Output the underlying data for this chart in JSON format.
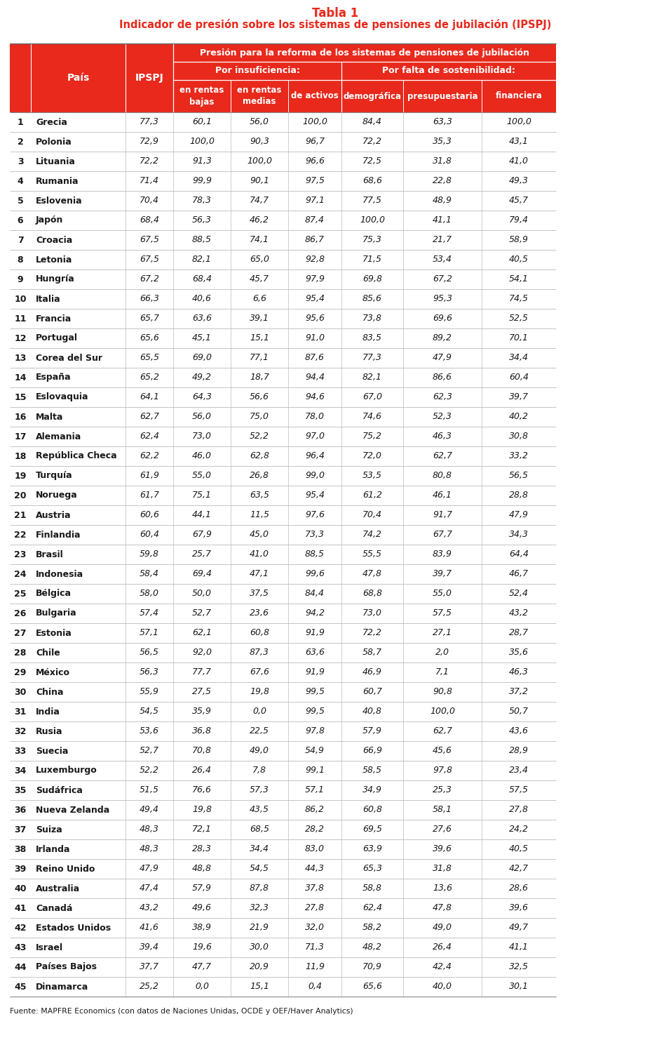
{
  "title_line1": "Tabla 1",
  "title_line2": "Indicador de presión sobre los sistemas de pensiones de jubilación (IPSPJ)",
  "header_main": "Presión para la reforma de los sistemas de pensiones de jubilación",
  "header_sub1": "Por insuficiencia:",
  "header_sub2": "Por falta de sostenibilidad:",
  "col_h_pais": "País",
  "col_h_ipspj": "IPSPJ",
  "col_h_rentas_bajas": "en rentas\nbajas",
  "col_h_rentas_medias": "en rentas\nmedias",
  "col_h_activos": "de activos",
  "col_h_demografica": "demográfica",
  "col_h_presupuestaria": "presupuestaria",
  "col_h_financiera": "financiera",
  "footer": "Fuente: MAPFRE Economics (con datos de Naciones Unidas, OCDE y OEF/Haver Analytics)",
  "red_color": "#E8291C",
  "white_color": "#FFFFFF",
  "black_color": "#1a1a1a",
  "gray_line": "#bbbbbb",
  "row_data": [
    [
      1,
      "Grecia",
      "77,3",
      "60,1",
      "56,0",
      "100,0",
      "84,4",
      "63,3",
      "100,0"
    ],
    [
      2,
      "Polonia",
      "72,9",
      "100,0",
      "90,3",
      "96,7",
      "72,2",
      "35,3",
      "43,1"
    ],
    [
      3,
      "Lituania",
      "72,2",
      "91,3",
      "100,0",
      "96,6",
      "72,5",
      "31,8",
      "41,0"
    ],
    [
      4,
      "Rumania",
      "71,4",
      "99,9",
      "90,1",
      "97,5",
      "68,6",
      "22,8",
      "49,3"
    ],
    [
      5,
      "Eslovenia",
      "70,4",
      "78,3",
      "74,7",
      "97,1",
      "77,5",
      "48,9",
      "45,7"
    ],
    [
      6,
      "Japón",
      "68,4",
      "56,3",
      "46,2",
      "87,4",
      "100,0",
      "41,1",
      "79,4"
    ],
    [
      7,
      "Croacia",
      "67,5",
      "88,5",
      "74,1",
      "86,7",
      "75,3",
      "21,7",
      "58,9"
    ],
    [
      8,
      "Letonia",
      "67,5",
      "82,1",
      "65,0",
      "92,8",
      "71,5",
      "53,4",
      "40,5"
    ],
    [
      9,
      "Hungría",
      "67,2",
      "68,4",
      "45,7",
      "97,9",
      "69,8",
      "67,2",
      "54,1"
    ],
    [
      10,
      "Italia",
      "66,3",
      "40,6",
      "6,6",
      "95,4",
      "85,6",
      "95,3",
      "74,5"
    ],
    [
      11,
      "Francia",
      "65,7",
      "63,6",
      "39,1",
      "95,6",
      "73,8",
      "69,6",
      "52,5"
    ],
    [
      12,
      "Portugal",
      "65,6",
      "45,1",
      "15,1",
      "91,0",
      "83,5",
      "89,2",
      "70,1"
    ],
    [
      13,
      "Corea del Sur",
      "65,5",
      "69,0",
      "77,1",
      "87,6",
      "77,3",
      "47,9",
      "34,4"
    ],
    [
      14,
      "España",
      "65,2",
      "49,2",
      "18,7",
      "94,4",
      "82,1",
      "86,6",
      "60,4"
    ],
    [
      15,
      "Eslovaquia",
      "64,1",
      "64,3",
      "56,6",
      "94,6",
      "67,0",
      "62,3",
      "39,7"
    ],
    [
      16,
      "Malta",
      "62,7",
      "56,0",
      "75,0",
      "78,0",
      "74,6",
      "52,3",
      "40,2"
    ],
    [
      17,
      "Alemania",
      "62,4",
      "73,0",
      "52,2",
      "97,0",
      "75,2",
      "46,3",
      "30,8"
    ],
    [
      18,
      "República Checa",
      "62,2",
      "46,0",
      "62,8",
      "96,4",
      "72,0",
      "62,7",
      "33,2"
    ],
    [
      19,
      "Turquía",
      "61,9",
      "55,0",
      "26,8",
      "99,0",
      "53,5",
      "80,8",
      "56,5"
    ],
    [
      20,
      "Noruega",
      "61,7",
      "75,1",
      "63,5",
      "95,4",
      "61,2",
      "46,1",
      "28,8"
    ],
    [
      21,
      "Austria",
      "60,6",
      "44,1",
      "11,5",
      "97,6",
      "70,4",
      "91,7",
      "47,9"
    ],
    [
      22,
      "Finlandia",
      "60,4",
      "67,9",
      "45,0",
      "73,3",
      "74,2",
      "67,7",
      "34,3"
    ],
    [
      23,
      "Brasil",
      "59,8",
      "25,7",
      "41,0",
      "88,5",
      "55,5",
      "83,9",
      "64,4"
    ],
    [
      24,
      "Indonesia",
      "58,4",
      "69,4",
      "47,1",
      "99,6",
      "47,8",
      "39,7",
      "46,7"
    ],
    [
      25,
      "Bélgica",
      "58,0",
      "50,0",
      "37,5",
      "84,4",
      "68,8",
      "55,0",
      "52,4"
    ],
    [
      26,
      "Bulgaria",
      "57,4",
      "52,7",
      "23,6",
      "94,2",
      "73,0",
      "57,5",
      "43,2"
    ],
    [
      27,
      "Estonia",
      "57,1",
      "62,1",
      "60,8",
      "91,9",
      "72,2",
      "27,1",
      "28,7"
    ],
    [
      28,
      "Chile",
      "56,5",
      "92,0",
      "87,3",
      "63,6",
      "58,7",
      "2,0",
      "35,6"
    ],
    [
      29,
      "México",
      "56,3",
      "77,7",
      "67,6",
      "91,9",
      "46,9",
      "7,1",
      "46,3"
    ],
    [
      30,
      "China",
      "55,9",
      "27,5",
      "19,8",
      "99,5",
      "60,7",
      "90,8",
      "37,2"
    ],
    [
      31,
      "India",
      "54,5",
      "35,9",
      "0,0",
      "99,5",
      "40,8",
      "100,0",
      "50,7"
    ],
    [
      32,
      "Rusia",
      "53,6",
      "36,8",
      "22,5",
      "97,8",
      "57,9",
      "62,7",
      "43,6"
    ],
    [
      33,
      "Suecia",
      "52,7",
      "70,8",
      "49,0",
      "54,9",
      "66,9",
      "45,6",
      "28,9"
    ],
    [
      34,
      "Luxemburgo",
      "52,2",
      "26,4",
      "7,8",
      "99,1",
      "58,5",
      "97,8",
      "23,4"
    ],
    [
      35,
      "Sudáfrica",
      "51,5",
      "76,6",
      "57,3",
      "57,1",
      "34,9",
      "25,3",
      "57,5"
    ],
    [
      36,
      "Nueva Zelanda",
      "49,4",
      "19,8",
      "43,5",
      "86,2",
      "60,8",
      "58,1",
      "27,8"
    ],
    [
      37,
      "Suiza",
      "48,3",
      "72,1",
      "68,5",
      "28,2",
      "69,5",
      "27,6",
      "24,2"
    ],
    [
      38,
      "Irlanda",
      "48,3",
      "28,3",
      "34,4",
      "83,0",
      "63,9",
      "39,6",
      "40,5"
    ],
    [
      39,
      "Reino Unido",
      "47,9",
      "48,8",
      "54,5",
      "44,3",
      "65,3",
      "31,8",
      "42,7"
    ],
    [
      40,
      "Australia",
      "47,4",
      "57,9",
      "87,8",
      "37,8",
      "58,8",
      "13,6",
      "28,6"
    ],
    [
      41,
      "Canadá",
      "43,2",
      "49,6",
      "32,3",
      "27,8",
      "62,4",
      "47,8",
      "39,6"
    ],
    [
      42,
      "Estados Unidos",
      "41,6",
      "38,9",
      "21,9",
      "32,0",
      "58,2",
      "49,0",
      "49,7"
    ],
    [
      43,
      "Israel",
      "39,4",
      "19,6",
      "30,0",
      "71,3",
      "48,2",
      "26,4",
      "41,1"
    ],
    [
      44,
      "Países Bajos",
      "37,7",
      "47,7",
      "20,9",
      "11,9",
      "70,9",
      "42,4",
      "32,5"
    ],
    [
      45,
      "Dinamarca",
      "25,2",
      "0,0",
      "15,1",
      "0,4",
      "65,6",
      "40,0",
      "30,1"
    ]
  ]
}
